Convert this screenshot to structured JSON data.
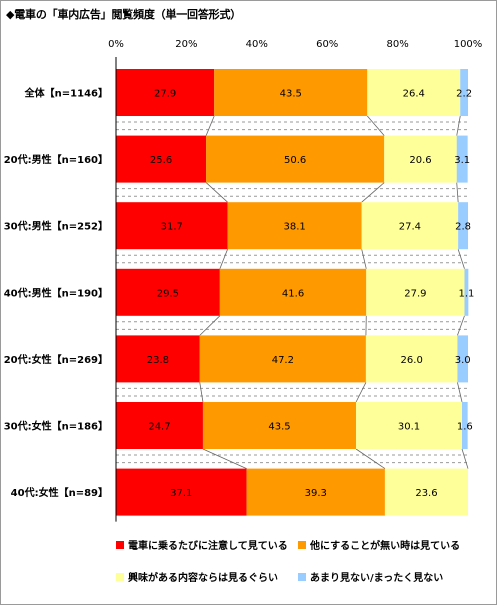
{
  "chart_data": {
    "type": "bar",
    "orientation": "horizontal",
    "stacked": "percent",
    "title": "◆電車の「車内広告」閲覧頻度（単一回答形式）",
    "categories": [
      "全体【n=1146】",
      "20代:男性【n=160】",
      "30代:男性【n=252】",
      "40代:男性【n=190】",
      "20代:女性【n=269】",
      "30代:女性【n=186】",
      "40代:女性【n=89】"
    ],
    "xlim": [
      0,
      100
    ],
    "xticks": [
      "0%",
      "20%",
      "40%",
      "60%",
      "80%",
      "100%"
    ],
    "legend_position": "bottom",
    "series": [
      {
        "name": "電車に乗るたびに注意して見ている",
        "color": "#ff0000",
        "values": [
          27.9,
          25.6,
          31.7,
          29.5,
          23.8,
          24.7,
          37.1
        ]
      },
      {
        "name": "他にすることが無い時は見ている",
        "color": "#ff9900",
        "values": [
          43.5,
          50.6,
          38.1,
          41.6,
          47.2,
          43.5,
          39.3
        ]
      },
      {
        "name": "興味がある内容ならは見るぐらい",
        "color": "#ffff99",
        "values": [
          26.4,
          20.6,
          27.4,
          27.9,
          26.0,
          30.1,
          23.6
        ]
      },
      {
        "name": "あまり見ない/まったく見ない",
        "color": "#99ccff",
        "values": [
          2.2,
          3.1,
          2.8,
          1.1,
          3.0,
          1.6,
          null
        ]
      }
    ],
    "labels": [
      [
        "27.9",
        "43.5",
        "26.4",
        "2.2"
      ],
      [
        "25.6",
        "50.6",
        "20.6",
        "3.1"
      ],
      [
        "31.7",
        "38.1",
        "27.4",
        "2.8"
      ],
      [
        "29.5",
        "41.6",
        "27.9",
        "1.1"
      ],
      [
        "23.8",
        "47.2",
        "26.0",
        "3.0"
      ],
      [
        "24.7",
        "43.5",
        "30.1",
        "1.6"
      ],
      [
        "37.1",
        "39.3",
        "23.6",
        ""
      ]
    ]
  }
}
